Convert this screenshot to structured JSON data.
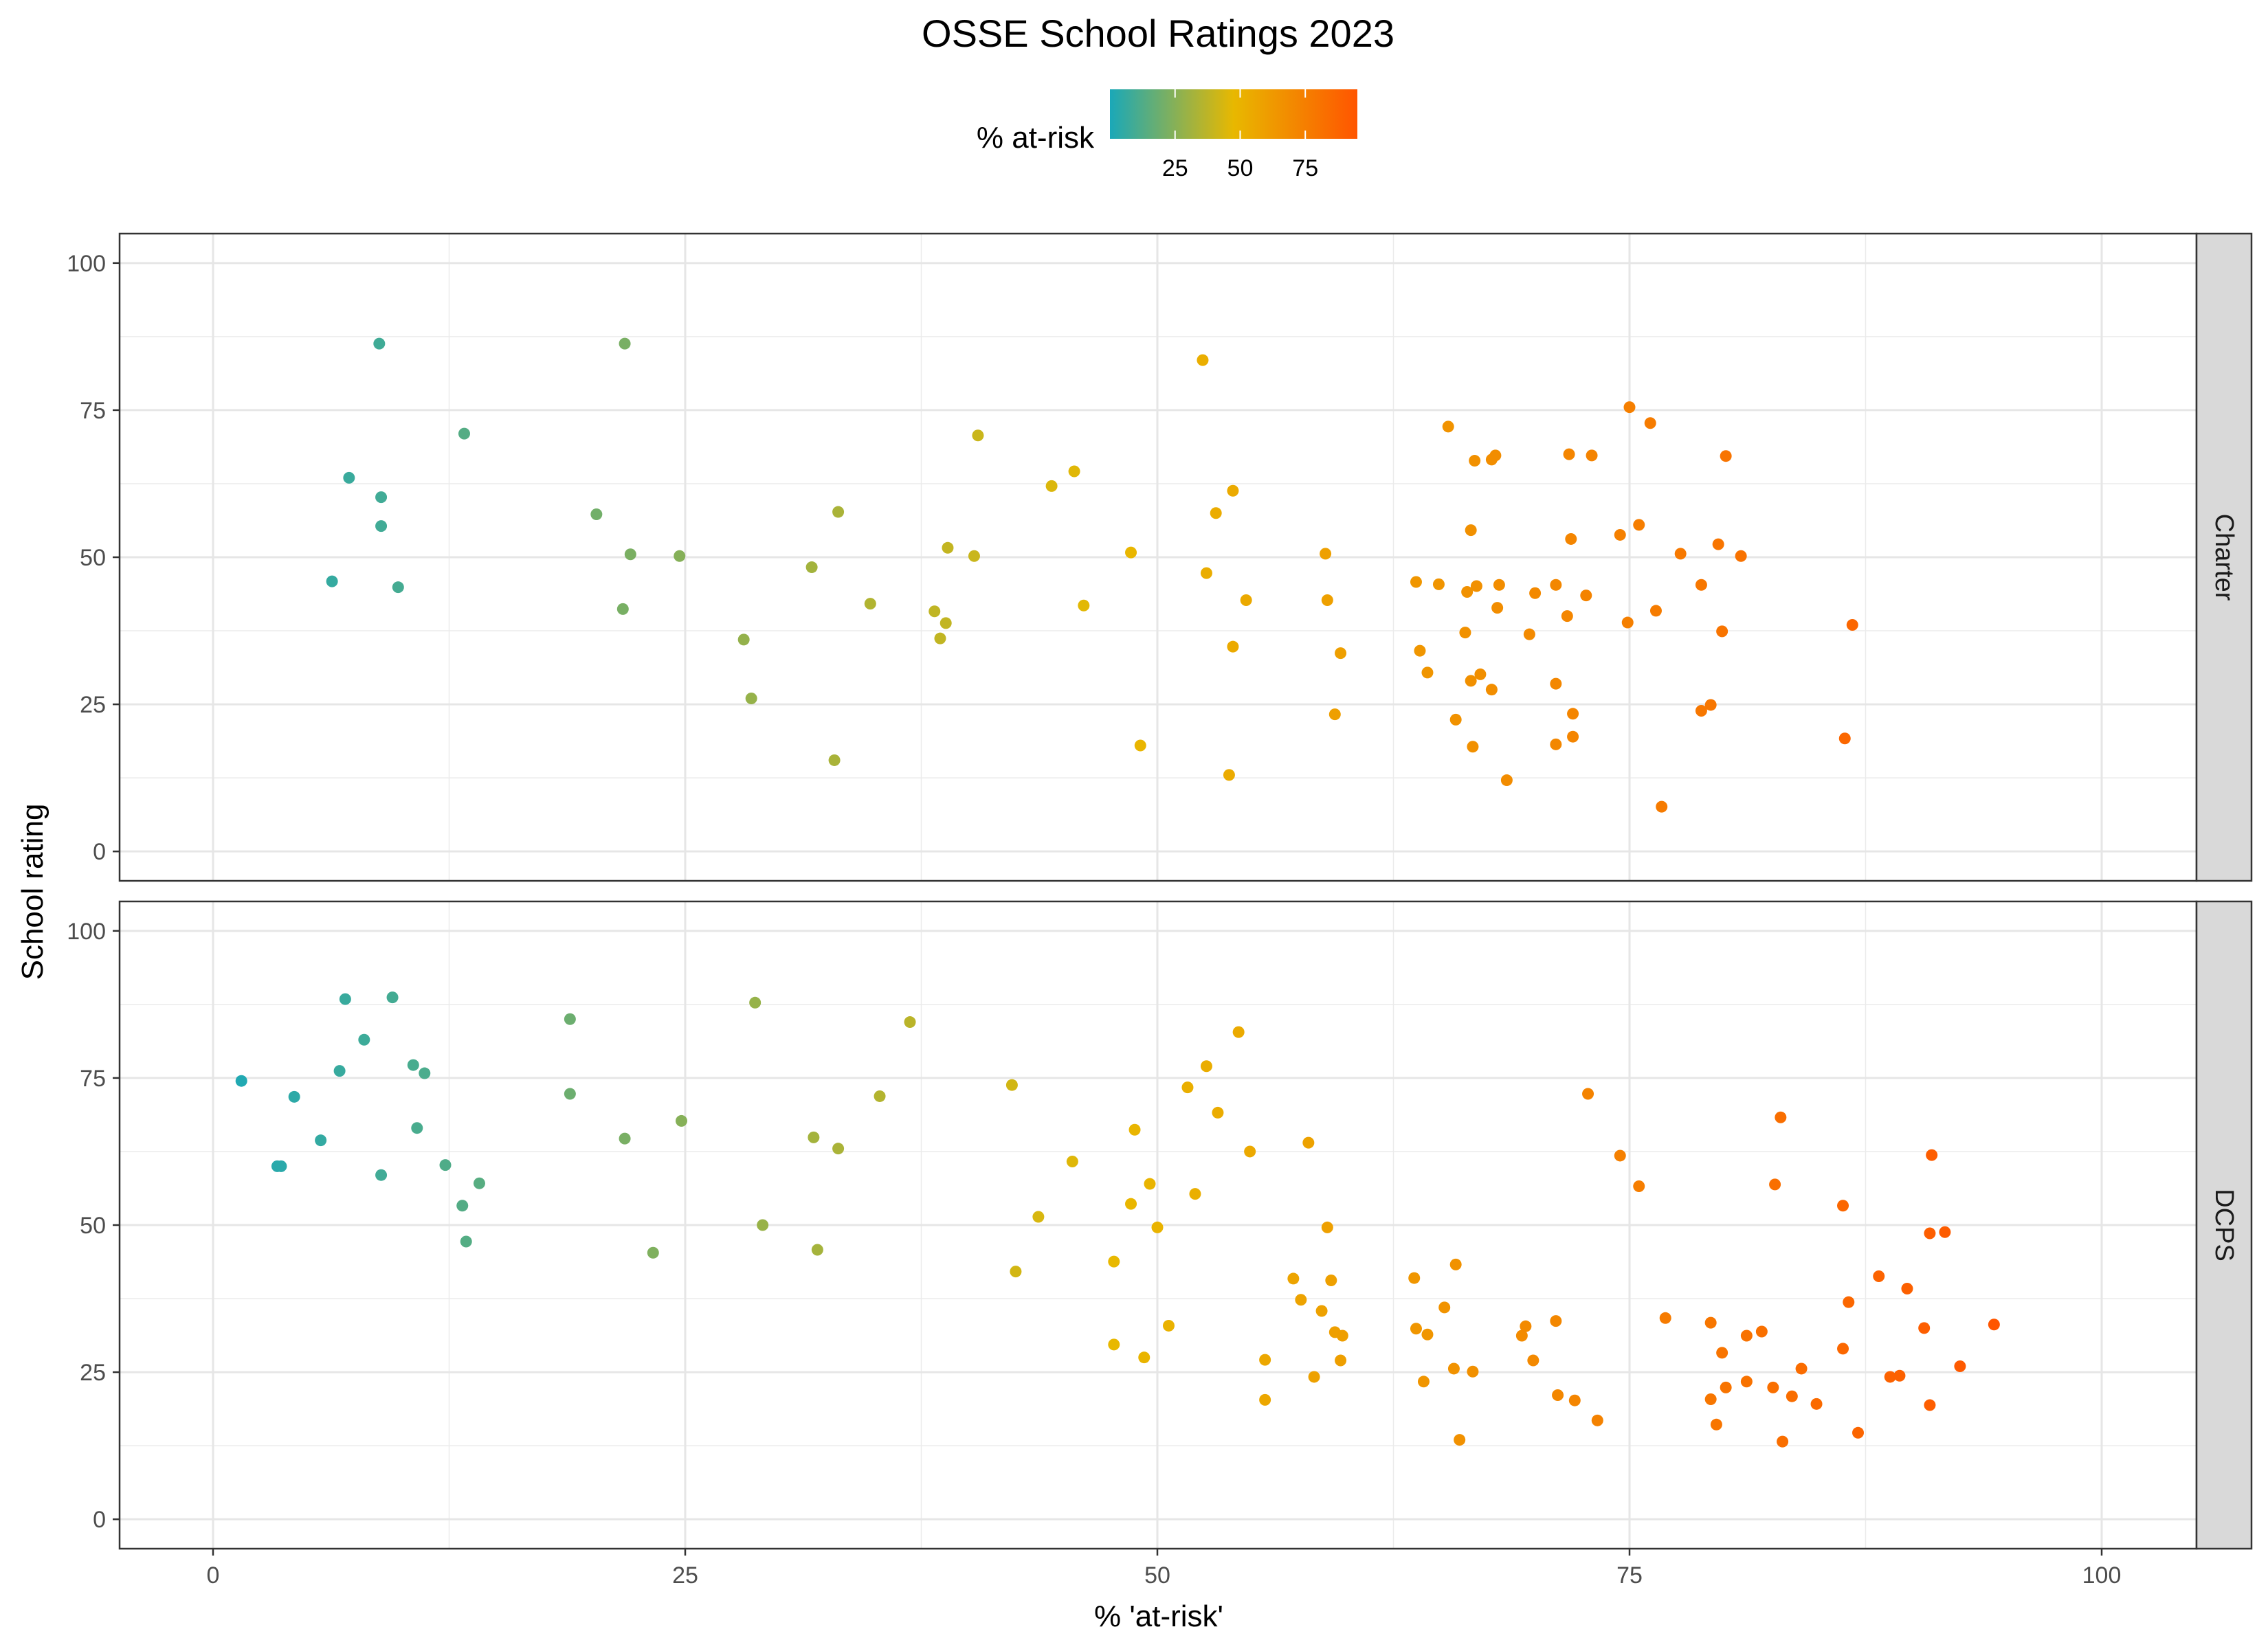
{
  "chart_data": {
    "type": "scatter",
    "title": "OSSE School Ratings 2023",
    "xlabel": "% 'at-risk'",
    "ylabel": "School rating",
    "xlim": [
      -5,
      105
    ],
    "ylim": [
      -5,
      105
    ],
    "x_ticks": [
      0,
      25,
      50,
      75,
      100
    ],
    "y_ticks": [
      0,
      25,
      50,
      75,
      100
    ],
    "grid": true,
    "legend": {
      "title": "% at-risk",
      "placement": "top",
      "type": "colorbar",
      "range": [
        0,
        95
      ],
      "ticks": [
        25,
        50,
        75
      ],
      "colors": [
        "#1aa8b8",
        "#e8b800",
        "#ff5500"
      ]
    },
    "facets": [
      {
        "label": "Charter",
        "points": [
          [
            8.8,
            86.3
          ],
          [
            21.8,
            86.3
          ],
          [
            13.3,
            71.0
          ],
          [
            7.2,
            63.5
          ],
          [
            8.9,
            60.2
          ],
          [
            8.9,
            55.3
          ],
          [
            6.3,
            45.9
          ],
          [
            9.8,
            44.9
          ],
          [
            20.3,
            57.3
          ],
          [
            22.1,
            50.5
          ],
          [
            24.7,
            50.2
          ],
          [
            21.7,
            41.2
          ],
          [
            33.1,
            57.7
          ],
          [
            31.7,
            48.3
          ],
          [
            34.8,
            42.1
          ],
          [
            28.1,
            36.0
          ],
          [
            28.5,
            26.0
          ],
          [
            32.9,
            15.5
          ],
          [
            40.5,
            70.7
          ],
          [
            38.9,
            51.6
          ],
          [
            40.3,
            50.2
          ],
          [
            38.2,
            40.8
          ],
          [
            38.8,
            38.8
          ],
          [
            38.5,
            36.2
          ],
          [
            52.4,
            83.5
          ],
          [
            44.4,
            62.1
          ],
          [
            45.6,
            64.6
          ],
          [
            54.0,
            61.3
          ],
          [
            53.1,
            57.5
          ],
          [
            48.6,
            50.8
          ],
          [
            46.1,
            41.8
          ],
          [
            52.6,
            47.3
          ],
          [
            54.7,
            42.7
          ],
          [
            54.0,
            34.8
          ],
          [
            49.1,
            18.0
          ],
          [
            53.8,
            13.0
          ],
          [
            58.9,
            50.6
          ],
          [
            59.0,
            42.7
          ],
          [
            59.7,
            33.7
          ],
          [
            59.4,
            23.3
          ],
          [
            65.4,
            72.2
          ],
          [
            66.8,
            66.4
          ],
          [
            67.7,
            66.6
          ],
          [
            67.9,
            67.3
          ],
          [
            66.6,
            54.6
          ],
          [
            63.7,
            45.8
          ],
          [
            64.9,
            45.4
          ],
          [
            66.9,
            45.1
          ],
          [
            66.4,
            44.1
          ],
          [
            68.1,
            45.3
          ],
          [
            70.0,
            43.9
          ],
          [
            68.0,
            41.4
          ],
          [
            71.1,
            45.3
          ],
          [
            72.7,
            43.5
          ],
          [
            71.7,
            40.0
          ],
          [
            63.9,
            34.1
          ],
          [
            66.3,
            37.2
          ],
          [
            69.7,
            36.9
          ],
          [
            64.3,
            30.4
          ],
          [
            67.1,
            30.1
          ],
          [
            66.6,
            29.0
          ],
          [
            67.7,
            27.5
          ],
          [
            71.1,
            28.5
          ],
          [
            65.8,
            22.4
          ],
          [
            72.0,
            23.4
          ],
          [
            66.7,
            17.8
          ],
          [
            72.0,
            19.5
          ],
          [
            71.1,
            18.2
          ],
          [
            68.5,
            12.1
          ],
          [
            71.8,
            67.5
          ],
          [
            73.0,
            67.3
          ],
          [
            71.9,
            53.1
          ],
          [
            75.0,
            75.5
          ],
          [
            76.1,
            72.8
          ],
          [
            80.1,
            67.2
          ],
          [
            74.5,
            53.8
          ],
          [
            75.5,
            55.5
          ],
          [
            77.7,
            50.6
          ],
          [
            79.7,
            52.2
          ],
          [
            80.9,
            50.2
          ],
          [
            78.8,
            45.3
          ],
          [
            76.4,
            40.9
          ],
          [
            74.9,
            38.9
          ],
          [
            79.9,
            37.4
          ],
          [
            79.3,
            24.9
          ],
          [
            78.8,
            23.9
          ],
          [
            76.7,
            7.6
          ],
          [
            86.8,
            38.5
          ],
          [
            86.4,
            19.2
          ]
        ]
      },
      {
        "label": "DCPS",
        "points": [
          [
            1.5,
            74.5
          ],
          [
            3.4,
            60.0
          ],
          [
            3.6,
            60.0
          ],
          [
            4.3,
            71.8
          ],
          [
            5.7,
            64.4
          ],
          [
            6.7,
            76.2
          ],
          [
            7.0,
            88.4
          ],
          [
            8.0,
            81.5
          ],
          [
            8.9,
            58.5
          ],
          [
            9.5,
            88.7
          ],
          [
            10.6,
            77.2
          ],
          [
            10.8,
            66.5
          ],
          [
            11.2,
            75.8
          ],
          [
            12.3,
            60.2
          ],
          [
            13.2,
            53.3
          ],
          [
            13.4,
            47.2
          ],
          [
            14.1,
            57.1
          ],
          [
            18.9,
            85.0
          ],
          [
            18.9,
            72.3
          ],
          [
            21.8,
            64.7
          ],
          [
            23.3,
            45.3
          ],
          [
            24.8,
            67.7
          ],
          [
            28.7,
            87.8
          ],
          [
            29.1,
            50.0
          ],
          [
            31.8,
            64.9
          ],
          [
            32.0,
            45.8
          ],
          [
            33.1,
            63.0
          ],
          [
            35.3,
            71.9
          ],
          [
            36.9,
            84.5
          ],
          [
            42.3,
            73.8
          ],
          [
            42.5,
            42.1
          ],
          [
            43.7,
            51.4
          ],
          [
            45.5,
            60.8
          ],
          [
            47.7,
            43.8
          ],
          [
            47.7,
            29.7
          ],
          [
            48.6,
            53.6
          ],
          [
            48.8,
            66.2
          ],
          [
            49.3,
            27.5
          ],
          [
            49.6,
            57.0
          ],
          [
            50.0,
            49.6
          ],
          [
            50.6,
            32.9
          ],
          [
            51.6,
            73.4
          ],
          [
            52.0,
            55.3
          ],
          [
            52.6,
            77.0
          ],
          [
            53.2,
            69.1
          ],
          [
            54.3,
            82.8
          ],
          [
            54.9,
            62.5
          ],
          [
            55.7,
            27.1
          ],
          [
            55.7,
            20.3
          ],
          [
            57.2,
            40.9
          ],
          [
            57.6,
            37.3
          ],
          [
            58.0,
            64.0
          ],
          [
            58.3,
            24.2
          ],
          [
            58.7,
            35.4
          ],
          [
            59.0,
            49.6
          ],
          [
            59.2,
            40.6
          ],
          [
            59.4,
            31.8
          ],
          [
            59.7,
            27.0
          ],
          [
            59.8,
            31.2
          ],
          [
            63.6,
            41.0
          ],
          [
            63.7,
            32.4
          ],
          [
            64.1,
            23.4
          ],
          [
            64.3,
            31.4
          ],
          [
            65.2,
            36.0
          ],
          [
            65.7,
            25.6
          ],
          [
            65.8,
            43.3
          ],
          [
            66.0,
            13.5
          ],
          [
            66.7,
            25.1
          ],
          [
            69.3,
            31.2
          ],
          [
            69.5,
            32.8
          ],
          [
            69.9,
            27.0
          ],
          [
            71.1,
            33.7
          ],
          [
            71.2,
            21.1
          ],
          [
            72.1,
            20.2
          ],
          [
            72.8,
            72.3
          ],
          [
            73.3,
            16.8
          ],
          [
            74.5,
            61.8
          ],
          [
            75.5,
            56.6
          ],
          [
            76.9,
            34.2
          ],
          [
            79.3,
            33.4
          ],
          [
            79.3,
            20.4
          ],
          [
            79.6,
            16.1
          ],
          [
            79.9,
            28.3
          ],
          [
            80.1,
            22.4
          ],
          [
            81.2,
            31.2
          ],
          [
            81.2,
            23.4
          ],
          [
            82.0,
            31.9
          ],
          [
            82.6,
            22.4
          ],
          [
            82.7,
            56.9
          ],
          [
            83.0,
            68.3
          ],
          [
            83.1,
            13.2
          ],
          [
            83.6,
            20.9
          ],
          [
            84.1,
            25.6
          ],
          [
            84.9,
            19.6
          ],
          [
            86.3,
            53.3
          ],
          [
            86.3,
            29.0
          ],
          [
            86.6,
            36.9
          ],
          [
            87.1,
            14.7
          ],
          [
            88.2,
            41.3
          ],
          [
            88.8,
            24.2
          ],
          [
            89.3,
            24.4
          ],
          [
            89.7,
            39.2
          ],
          [
            90.6,
            32.5
          ],
          [
            90.9,
            48.6
          ],
          [
            90.9,
            19.4
          ],
          [
            91.0,
            61.9
          ],
          [
            91.7,
            48.8
          ],
          [
            92.5,
            26.0
          ],
          [
            94.3,
            33.1
          ]
        ]
      }
    ]
  }
}
